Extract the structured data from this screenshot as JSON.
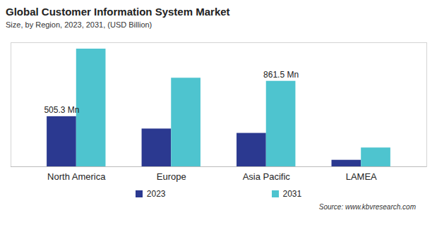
{
  "chart_data": {
    "type": "bar",
    "title": "Global Customer Information System Market",
    "subtitle": "Size, by Region, 2023, 2031, (USD Billion)",
    "source": "Source: www.kbvresearch.com",
    "categories": [
      "North America",
      "Europe",
      "Asia Pacific",
      "LAMEA"
    ],
    "series": [
      {
        "name": "2023",
        "color": "#2b3990",
        "values": [
          505.3,
          381,
          337,
          66
        ],
        "value_labels": [
          "505.3 Mn",
          null,
          null,
          null
        ]
      },
      {
        "name": "2031",
        "color": "#4ec4cf",
        "values": [
          1186,
          893,
          861.5,
          190
        ],
        "value_labels": [
          null,
          null,
          "861.5 Mn",
          null
        ]
      }
    ],
    "ylim": [
      0,
      1250
    ],
    "data_labels": true,
    "tick_labels": "x",
    "legend": "bottom"
  }
}
